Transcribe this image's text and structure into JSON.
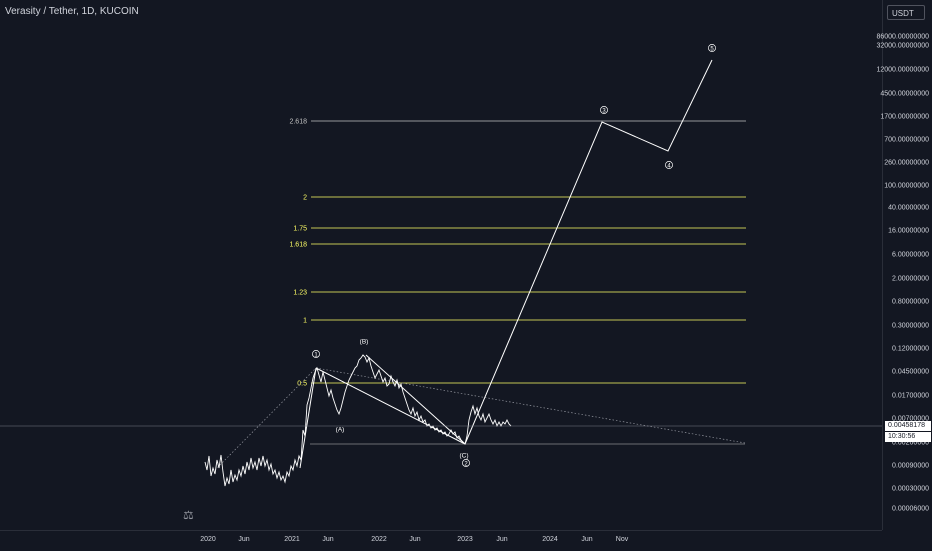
{
  "header": {
    "title": "Verasity / Tether, 1D, KUCOIN",
    "top_cut_label": ""
  },
  "price_axis": {
    "currency": "USDT",
    "labels": [
      "86000.00000000",
      "32000.00000000",
      "12000.00000000",
      "4500.00000000",
      "1700.00000000",
      "700.00000000",
      "260.00000000",
      "100.00000000",
      "40.00000000",
      "16.00000000",
      "6.00000000",
      "2.00000000",
      "0.80000000",
      "0.30000000",
      "0.12000000",
      "0.04500000",
      "0.01700000",
      "0.00700000",
      "0.00260000",
      "0.00090000",
      "0.00030000",
      "0.00006000"
    ],
    "current_price": "0.00458178",
    "countdown": "10:30:56"
  },
  "time_axis": {
    "labels": [
      "2020",
      "Jun",
      "2021",
      "Jun",
      "2022",
      "Jun",
      "2023",
      "Jun",
      "2024",
      "Jun",
      "Nov"
    ]
  },
  "fib_levels": [
    {
      "label": "2.618",
      "color": "#c3c3c3"
    },
    {
      "label": "2",
      "color": "#ffff66"
    },
    {
      "label": "1.75",
      "color": "#ffff66"
    },
    {
      "label": "1.618",
      "color": "#ffff66"
    },
    {
      "label": "1.23",
      "color": "#ffff66"
    },
    {
      "label": "1",
      "color": "#ffff66"
    },
    {
      "label": "0.5",
      "color": "#ffff66"
    }
  ],
  "wave_labels": [
    "1",
    "(B)",
    "(A)",
    "(C)",
    "2",
    "3",
    "4",
    "5"
  ],
  "colors": {
    "background": "#131722",
    "price_line": "#ffffff",
    "fib_yellow": "#ffff66",
    "fib_grey": "#c3c3c3"
  }
}
